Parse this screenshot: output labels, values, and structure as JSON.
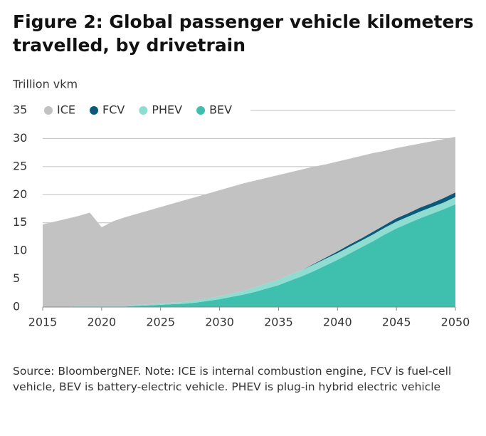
{
  "chart_data": {
    "type": "stacked-area",
    "title": "Figure 2: Global passenger vehicle kilometers travelled, by drivetrain",
    "y_label": "Trillion vkm",
    "note": "Source: BloombergNEF. Note: ICE is internal combustion engine, FCV is fuel-cell vehicle, BEV is battery-electric vehicle. PHEV is plug-in hybrid electric vehicle",
    "x": [
      2015,
      2016,
      2017,
      2018,
      2019,
      2020,
      2021,
      2022,
      2023,
      2024,
      2025,
      2026,
      2027,
      2028,
      2029,
      2030,
      2031,
      2032,
      2033,
      2034,
      2035,
      2036,
      2037,
      2038,
      2039,
      2040,
      2041,
      2042,
      2043,
      2044,
      2045,
      2046,
      2047,
      2048,
      2049,
      2050
    ],
    "series": [
      {
        "name": "ICE",
        "color": "#c2c2c2",
        "values": [
          14.7,
          15.2,
          15.7,
          16.0,
          16.6,
          14.0,
          15.1,
          15.8,
          16.2,
          16.7,
          17.2,
          17.6,
          18.1,
          18.4,
          18.7,
          18.9,
          19.0,
          19.1,
          19.0,
          18.8,
          18.6,
          18.2,
          17.9,
          17.3,
          16.6,
          16.0,
          15.3,
          14.7,
          14.0,
          13.2,
          12.5,
          12.0,
          11.4,
          11.0,
          10.5,
          9.9
        ]
      },
      {
        "name": "FCV",
        "color": "#0b5a7a",
        "values": [
          0,
          0,
          0,
          0,
          0,
          0,
          0,
          0,
          0,
          0,
          0,
          0,
          0,
          0,
          0,
          0,
          0,
          0,
          0,
          0,
          0,
          0,
          0,
          0.1,
          0.2,
          0.3,
          0.4,
          0.4,
          0.5,
          0.5,
          0.6,
          0.6,
          0.7,
          0.7,
          0.8,
          0.8
        ]
      },
      {
        "name": "PHEV",
        "color": "#8fdcd0",
        "values": [
          0,
          0,
          0,
          0.1,
          0.1,
          0.1,
          0.1,
          0.1,
          0.2,
          0.2,
          0.2,
          0.3,
          0.3,
          0.4,
          0.4,
          0.5,
          0.6,
          0.7,
          0.8,
          0.9,
          1.0,
          1.1,
          1.1,
          1.2,
          1.2,
          1.2,
          1.2,
          1.2,
          1.2,
          1.2,
          1.2,
          1.2,
          1.2,
          1.2,
          1.2,
          1.3
        ]
      },
      {
        "name": "BEV",
        "color": "#3fbfad",
        "values": [
          0,
          0,
          0,
          0.1,
          0.1,
          0.1,
          0.1,
          0.1,
          0.2,
          0.3,
          0.4,
          0.5,
          0.6,
          0.8,
          1.1,
          1.4,
          1.8,
          2.2,
          2.7,
          3.3,
          3.9,
          4.7,
          5.5,
          6.4,
          7.4,
          8.4,
          9.5,
          10.6,
          11.7,
          12.9,
          14.0,
          14.9,
          15.8,
          16.6,
          17.4,
          18.3
        ]
      }
    ],
    "xlim": [
      2015,
      2050
    ],
    "xticks": [
      2015,
      2020,
      2025,
      2030,
      2035,
      2040,
      2045,
      2050
    ],
    "ylim": [
      0,
      35
    ],
    "yticks": [
      0,
      5,
      10,
      15,
      20,
      25,
      30,
      35
    ],
    "grid": true,
    "legend": "top"
  }
}
